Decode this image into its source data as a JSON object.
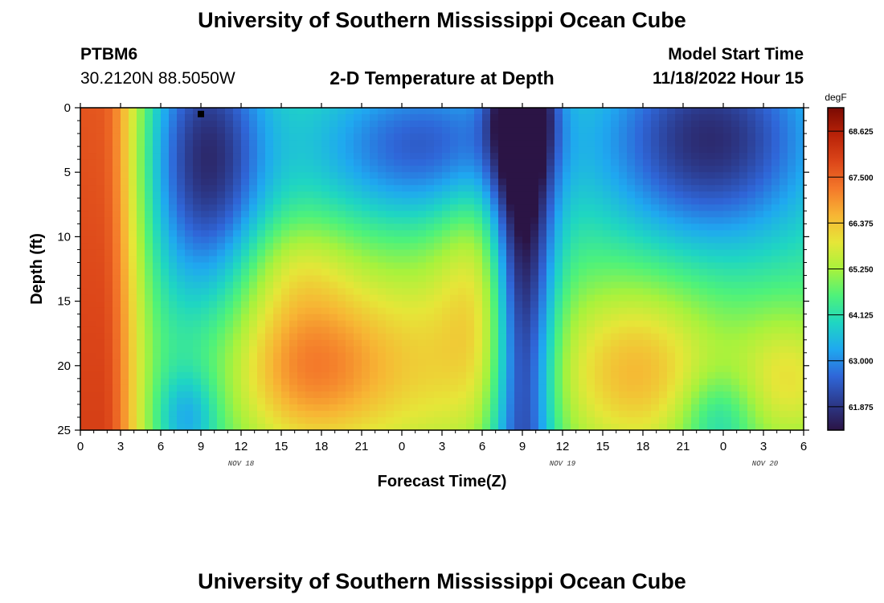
{
  "header": {
    "title": "University of Southern Mississippi Ocean Cube",
    "station": "PTBM6",
    "coordinates": "30.2120N  88.5050W",
    "subtitle": "2-D Temperature at Depth",
    "model_start_label": "Model Start Time",
    "model_start_value": "11/18/2022 Hour 15"
  },
  "footer": {
    "title": "University of Southern Mississippi Ocean Cube"
  },
  "chart_data": {
    "type": "heatmap",
    "title": "2-D Temperature at Depth",
    "xlabel": "Forecast Time(Z)",
    "ylabel": "Depth (ft)",
    "x_ticks": [
      "0",
      "3",
      "6",
      "9",
      "12",
      "15",
      "18",
      "21",
      "0",
      "3",
      "6",
      "9",
      "12",
      "15",
      "18",
      "21",
      "0",
      "3",
      "6"
    ],
    "x_range_hours": [
      0,
      54
    ],
    "day_labels": [
      {
        "text": "NOV 18",
        "hour": 12
      },
      {
        "text": "NOV 19",
        "hour": 36
      },
      {
        "text": "NOV 20",
        "hour": 60
      }
    ],
    "y_ticks": [
      "0",
      "5",
      "10",
      "15",
      "20",
      "25"
    ],
    "ylim": [
      0,
      25
    ],
    "y_inverted": true,
    "colorbar": {
      "unit": "degF",
      "labels": [
        "68.625",
        "67.500",
        "66.375",
        "65.250",
        "64.125",
        "63.000",
        "61.875"
      ],
      "range": [
        61.3,
        69.2
      ],
      "colors": [
        "#2b1445",
        "#2c3a8c",
        "#2f66d8",
        "#1fa8f0",
        "#1fd6c2",
        "#4ef27a",
        "#a8f23c",
        "#e6e638",
        "#f7b534",
        "#f4782a",
        "#dc4619",
        "#b82208",
        "#7a0a03"
      ]
    },
    "marker": {
      "hour": 9,
      "depth": 0.3,
      "shape": "square"
    },
    "grid": false
  }
}
